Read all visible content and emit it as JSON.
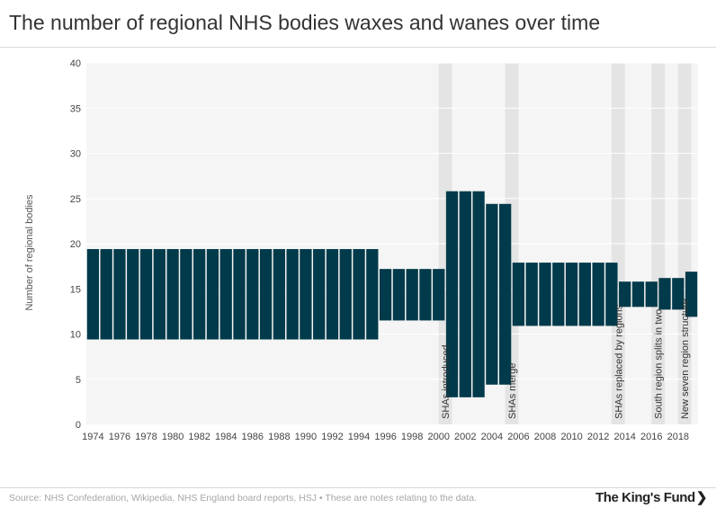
{
  "title": "The number of regional NHS bodies waxes and wanes over time",
  "source": "Source: NHS Confederation, Wikipedia, NHS England board reports, HSJ • These are notes relating to the data.",
  "logo": "The King's Fund",
  "logo_chevron": "❯",
  "colors": {
    "bar": "#013a4a",
    "plot_bg": "#f5f5f5",
    "shade": "#e4e4e4",
    "grid": "#ffffff",
    "tick_text": "#444444"
  },
  "chart_data": {
    "type": "bar",
    "subtype": "floating-range",
    "title": "The number of regional NHS bodies waxes and wanes over time",
    "ylabel": "Number of regional bodies",
    "xlabel": "",
    "ylim": [
      0,
      40
    ],
    "xlim": [
      1973.5,
      2019.5
    ],
    "yticks": [
      0,
      5,
      10,
      15,
      20,
      25,
      30,
      35,
      40
    ],
    "xticks": [
      1974,
      1976,
      1978,
      1980,
      1982,
      1984,
      1986,
      1988,
      1990,
      1992,
      1994,
      1996,
      1998,
      2000,
      2002,
      2004,
      2006,
      2008,
      2010,
      2012,
      2014,
      2016,
      2018
    ],
    "grid": true,
    "segments": [
      {
        "from": 1974,
        "to": 1995,
        "low": 9.4,
        "high": 19.4
      },
      {
        "from": 1996,
        "to": 2000,
        "low": 11.5,
        "high": 17.2
      },
      {
        "from": 2001,
        "to": 2003,
        "low": 3.0,
        "high": 25.8
      },
      {
        "from": 2004,
        "to": 2005,
        "low": 4.4,
        "high": 24.4
      },
      {
        "from": 2006,
        "to": 2013,
        "low": 10.9,
        "high": 17.9
      },
      {
        "from": 2014,
        "to": 2016,
        "low": 13.0,
        "high": 15.8
      },
      {
        "from": 2017,
        "to": 2018,
        "low": 12.7,
        "high": 16.2
      },
      {
        "from": 2019,
        "to": 2019,
        "low": 11.9,
        "high": 16.9
      }
    ],
    "annotations": [
      {
        "label": "SHAs introduced",
        "year": 2000.5
      },
      {
        "label": "SHAs merge",
        "year": 2005.5
      },
      {
        "label": "SHAs replaced by regions",
        "year": 2013.5
      },
      {
        "label": "South region splits in two",
        "year": 2016.5
      },
      {
        "label": "New seven region structure",
        "year": 2018.5
      }
    ]
  }
}
